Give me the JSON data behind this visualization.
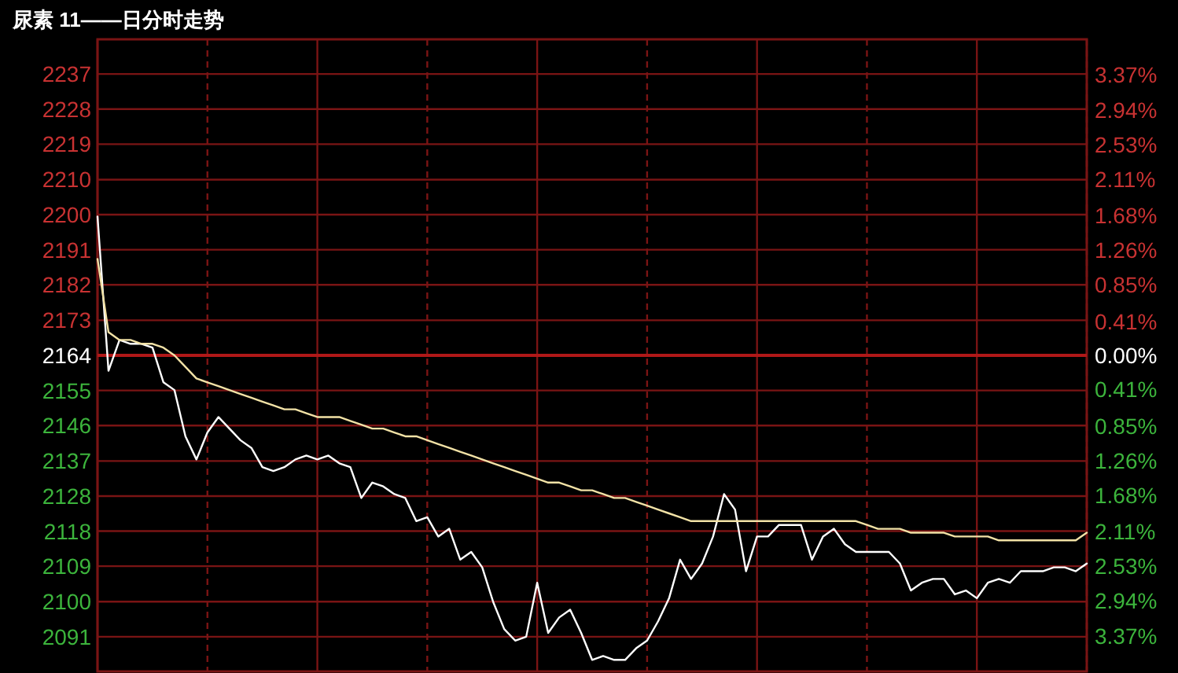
{
  "chart_data": {
    "type": "line",
    "title": "尿素 11——日分时走势",
    "categories": [
      null,
      null,
      null,
      null,
      null,
      null,
      null,
      null,
      null,
      null,
      null,
      null,
      null,
      null,
      null,
      null,
      null,
      null,
      null,
      null,
      null,
      null,
      null,
      null,
      null,
      null,
      null,
      null,
      null,
      null,
      null,
      null,
      null,
      null,
      null,
      null,
      null,
      null,
      null,
      null,
      null,
      null,
      null,
      null,
      null,
      null,
      null,
      null,
      null,
      null,
      null,
      null,
      null,
      null,
      null,
      null,
      null,
      null,
      null,
      null,
      null,
      null,
      null,
      null,
      null,
      null,
      null,
      null,
      null,
      null,
      null,
      null,
      null,
      null,
      null,
      null,
      null,
      null,
      null,
      null,
      null,
      null,
      null,
      null,
      null,
      null,
      null,
      null,
      null,
      null,
      null
    ],
    "ylim": [
      2082,
      2246
    ],
    "yticks": [
      {
        "value": 2091,
        "label": "2091"
      },
      {
        "value": 2100.1,
        "label": "2100"
      },
      {
        "value": 2109.3,
        "label": "2109"
      },
      {
        "value": 2118.4,
        "label": "2118"
      },
      {
        "value": 2127.5,
        "label": "2128"
      },
      {
        "value": 2136.6,
        "label": "2137"
      },
      {
        "value": 2145.8,
        "label": "2146"
      },
      {
        "value": 2154.9,
        "label": "2155"
      },
      {
        "value": 2164,
        "label": "2164"
      },
      {
        "value": 2173.1,
        "label": "2173"
      },
      {
        "value": 2182.3,
        "label": "2182"
      },
      {
        "value": 2191.4,
        "label": "2191"
      },
      {
        "value": 2200.5,
        "label": "2200"
      },
      {
        "value": 2209.6,
        "label": "2210"
      },
      {
        "value": 2218.8,
        "label": "2219"
      },
      {
        "value": 2227.9,
        "label": "2228"
      },
      {
        "value": 2237,
        "label": "2237"
      }
    ],
    "y2lim": [
      -3.79,
      3.79
    ],
    "y2ticks": [
      {
        "value": -3.37,
        "label": "3.37%"
      },
      {
        "value": -2.94,
        "label": "2.94%"
      },
      {
        "value": -2.53,
        "label": "2.53%"
      },
      {
        "value": -2.11,
        "label": "2.11%"
      },
      {
        "value": -1.68,
        "label": "1.68%"
      },
      {
        "value": -1.26,
        "label": "1.26%"
      },
      {
        "value": -0.85,
        "label": "0.85%"
      },
      {
        "value": -0.41,
        "label": "0.41%"
      },
      {
        "value": 0,
        "label": "0.00%"
      },
      {
        "value": 0.41,
        "label": "0.41%"
      },
      {
        "value": 0.85,
        "label": "0.85%"
      },
      {
        "value": 1.26,
        "label": "1.26%"
      },
      {
        "value": 1.68,
        "label": "1.68%"
      },
      {
        "value": 2.11,
        "label": "2.11%"
      },
      {
        "value": 2.53,
        "label": "2.53%"
      },
      {
        "value": 2.94,
        "label": "2.94%"
      },
      {
        "value": 3.37,
        "label": "3.37%"
      }
    ],
    "grid": true,
    "ref_lines": [
      {
        "axis": "y",
        "value": 2164,
        "color": "#b01818"
      }
    ],
    "series": [
      {
        "color": "#ffffff",
        "values": [
          2200,
          2160,
          2168,
          2167,
          2167,
          2166,
          2157,
          2155,
          2143,
          2137,
          2144,
          2148,
          2145,
          2142,
          2140,
          2135,
          2134,
          2135,
          2137,
          2138,
          2137,
          2138,
          2136,
          2135,
          2127,
          2131,
          2130,
          2128,
          2127,
          2121,
          2122,
          2117,
          2119,
          2111,
          2113,
          2109,
          2100,
          2093,
          2090,
          2091,
          2105,
          2092,
          2096,
          2098,
          2092,
          2085,
          2086,
          2085,
          2085,
          2088,
          2090,
          2095,
          2101,
          2111,
          2106,
          2110,
          2117,
          2128,
          2124,
          2108,
          2117,
          2117,
          2120,
          2120,
          2120,
          2111,
          2117,
          2119,
          2115,
          2113,
          2113,
          2113,
          2113,
          2110,
          2103,
          2105,
          2106,
          2106,
          2102,
          2103,
          2101,
          2105,
          2106,
          2105,
          2108,
          2108,
          2108,
          2109,
          2109,
          2108,
          2110
        ]
      },
      {
        "color": "#f2e2a6",
        "values": [
          2189,
          2170,
          2168,
          2168,
          2167,
          2167,
          2166,
          2164,
          2161,
          2158,
          2157,
          2156,
          2155,
          2154,
          2153,
          2152,
          2151,
          2150,
          2150,
          2149,
          2148,
          2148,
          2148,
          2147,
          2146,
          2145,
          2145,
          2144,
          2143,
          2143,
          2142,
          2141,
          2140,
          2139,
          2138,
          2137,
          2136,
          2135,
          2134,
          2133,
          2132,
          2131,
          2131,
          2130,
          2129,
          2129,
          2128,
          2127,
          2127,
          2126,
          2125,
          2124,
          2123,
          2122,
          2121,
          2121,
          2121,
          2121,
          2121,
          2121,
          2121,
          2121,
          2121,
          2121,
          2121,
          2121,
          2121,
          2121,
          2121,
          2121,
          2120,
          2119,
          2119,
          2119,
          2118,
          2118,
          2118,
          2118,
          2117,
          2117,
          2117,
          2117,
          2116,
          2116,
          2116,
          2116,
          2116,
          2116,
          2116,
          2116,
          2118
        ]
      }
    ]
  }
}
